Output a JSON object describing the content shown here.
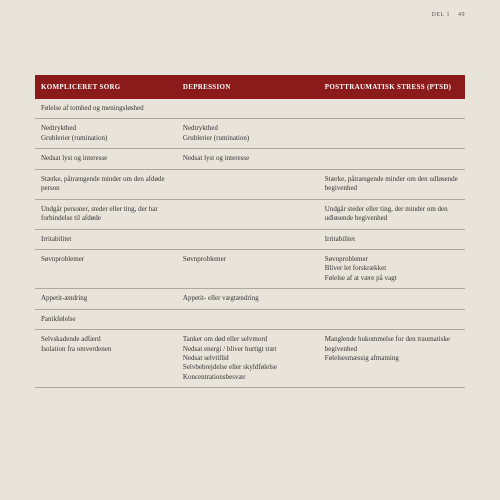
{
  "header": {
    "section": "DEL 1",
    "page": "49"
  },
  "table": {
    "columns": [
      "KOMPLICERET SORG",
      "DEPRESSION",
      "POSTTRAUMATISK STRESS (PTSD)"
    ],
    "rows": [
      {
        "c1": "Følelse af tomhed og meningsløshed",
        "c2": "",
        "c3": ""
      },
      {
        "c1": "Nedtrykthed\nGrublerier (rumination)",
        "c2": "Nedtrykthed\nGrublerier (rumination)",
        "c3": ""
      },
      {
        "c1": "Nedsat lyst og interesse",
        "c2": "Nedsat lyst og interesse",
        "c3": ""
      },
      {
        "c1": "Stærke, påtrængende minder om den afdøde person",
        "c2": "",
        "c3": "Stærke, påtrængende minder om den udløsende begivenhed"
      },
      {
        "c1": "Undgår personer, steder eller ting, der har forbindelse til afdøde",
        "c2": "",
        "c3": "Undgår steder eller ting, der minder om den udløsende begivenhed"
      },
      {
        "c1": "Irritabilitet",
        "c2": "",
        "c3": "Irritabilitet"
      },
      {
        "c1": "Søvnproblemer",
        "c2": "Søvnproblemer",
        "c3": "Søvnproblemer\nBliver let forskrækket\nFølelse af at være på vagt"
      },
      {
        "c1": "Appetit-ændring",
        "c2": "Appetit- eller vægtændring",
        "c3": ""
      },
      {
        "c1": "Panikfølelse",
        "c2": "",
        "c3": ""
      },
      {
        "c1": "Selvskadende adfærd\nIsolation fra omverdenen",
        "c2": "Tanker om død eller selvmord\nNedsat energi / bliver hurtigt træt\nNedsat selvtillid\nSelvbebrejdelse eller skyldfølelse\nKoncentrationsbesvær",
        "c3": "Manglende hukommelse for den traumatiske begivenhed\nFølelsesmæssig afmatning"
      }
    ]
  }
}
